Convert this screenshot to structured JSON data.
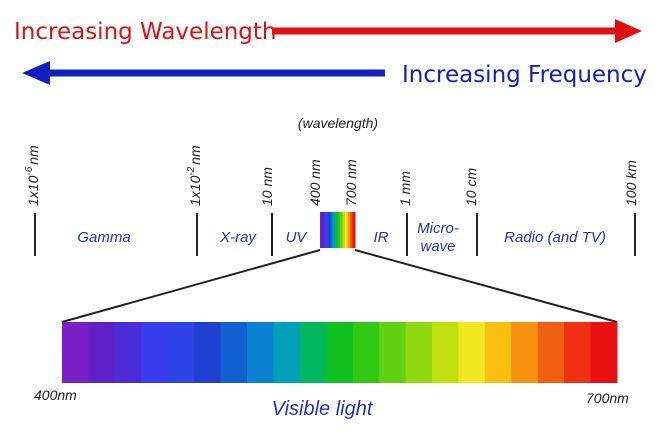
{
  "arrows": {
    "wavelength": "Increasing Wavelength",
    "frequency": "Increasing Frequency"
  },
  "scale_title": "(wavelength)",
  "ticks": [
    {
      "base": "1x10",
      "exp": "-6",
      "unit": "nm"
    },
    {
      "base": "1x10",
      "exp": "-2",
      "unit": "nm"
    },
    {
      "base": "10 nm"
    },
    {
      "base": "400 nm"
    },
    {
      "base": "700 nm"
    },
    {
      "base": "1 mm"
    },
    {
      "base": "10 cm"
    },
    {
      "base": "100 km"
    }
  ],
  "regions": [
    {
      "lines": [
        "Gamma"
      ]
    },
    {
      "lines": [
        "X-ray"
      ]
    },
    {
      "lines": [
        "UV"
      ]
    },
    {
      "lines": [
        "IR"
      ]
    },
    {
      "lines": [
        "Micro-",
        "wave"
      ]
    },
    {
      "lines": [
        "Radio (and TV)"
      ]
    }
  ],
  "visible": {
    "start": "400nm",
    "end": "700nm",
    "label": "Visible light"
  }
}
